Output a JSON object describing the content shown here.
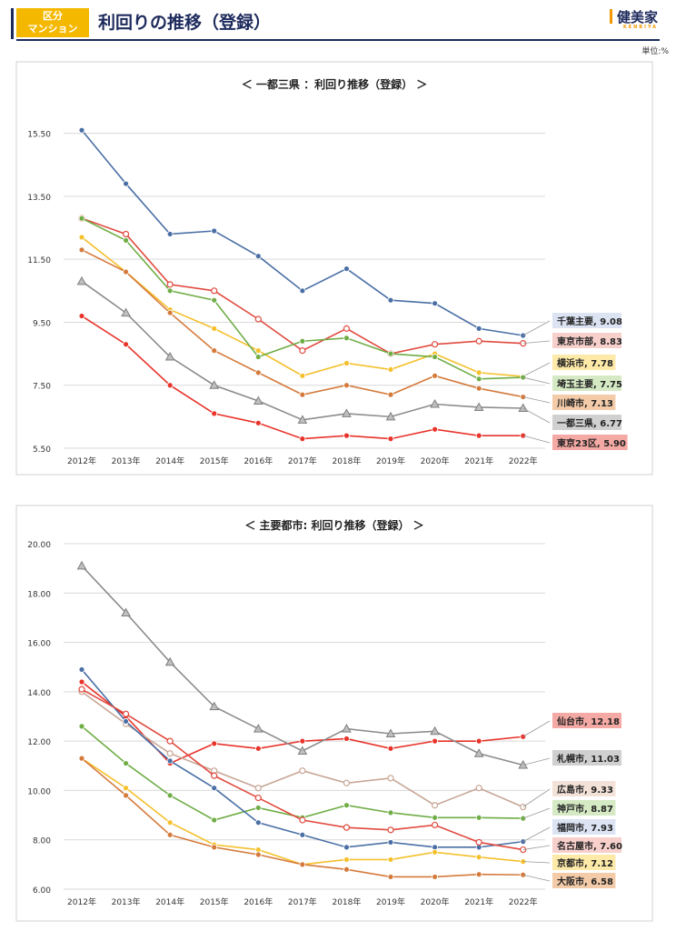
{
  "header": {
    "badge_line1": "区分",
    "badge_line2": "マンション",
    "title": "利回りの推移（登録）",
    "logo": "健美家",
    "logo_sub": "KENBIYA",
    "unit": "単位:%"
  },
  "chart_data": [
    {
      "type": "line",
      "title": "＜ 一都三県 ：利回り推移（登録） ＞",
      "categories": [
        "2012年",
        "2013年",
        "2014年",
        "2015年",
        "2016年",
        "2017年",
        "2018年",
        "2019年",
        "2020年",
        "2021年",
        "2022年"
      ],
      "ylim": [
        5.5,
        16.5
      ],
      "yticks": [
        "5.50",
        "7.50",
        "9.50",
        "11.50",
        "13.50",
        "15.50"
      ],
      "series": [
        {
          "name": "千葉主要",
          "label": "千葉主要, 9.08",
          "color": "#4a6fa5",
          "marker": "circle",
          "label_bg": "#dce3f3",
          "values": [
            15.6,
            13.9,
            12.3,
            12.4,
            11.6,
            10.5,
            11.2,
            10.2,
            10.1,
            9.3,
            9.08
          ]
        },
        {
          "name": "東京市部",
          "label": "東京市部, 8.83",
          "color": "#e04a3f",
          "marker": "circle-open",
          "label_bg": "#f7d0cc",
          "values": [
            12.8,
            12.3,
            10.7,
            10.5,
            9.6,
            8.6,
            9.3,
            8.5,
            8.8,
            8.9,
            8.83
          ]
        },
        {
          "name": "横浜市",
          "label": "横浜市, 7.78",
          "color": "#f5c02c",
          "marker": "circle",
          "label_bg": "#fde9a8",
          "values": [
            12.2,
            11.1,
            9.9,
            9.3,
            8.6,
            7.8,
            8.2,
            8.0,
            8.5,
            7.9,
            7.78
          ]
        },
        {
          "name": "埼玉主要",
          "label": "埼玉主要, 7.75",
          "color": "#70ad47",
          "marker": "circle",
          "label_bg": "#d5e9c4",
          "values": [
            12.8,
            12.1,
            10.5,
            10.2,
            8.4,
            8.9,
            9.0,
            8.5,
            8.4,
            7.7,
            7.75
          ]
        },
        {
          "name": "川崎市",
          "label": "川崎市, 7.13",
          "color": "#d47a3b",
          "marker": "circle",
          "label_bg": "#f3cba9",
          "values": [
            11.8,
            11.1,
            9.8,
            8.6,
            7.9,
            7.2,
            7.5,
            7.2,
            7.8,
            7.4,
            7.13
          ]
        },
        {
          "name": "一都三県",
          "label": "一都三県, 6.77",
          "color": "#8c8c8c",
          "marker": "triangle",
          "label_bg": "#d0d0d0",
          "values": [
            10.8,
            9.8,
            8.4,
            7.5,
            7.0,
            6.4,
            6.6,
            6.5,
            6.9,
            6.8,
            6.77
          ]
        },
        {
          "name": "東京23区",
          "label": "東京23区, 5.90",
          "color": "#e8332a",
          "marker": "circle",
          "label_bg": "#f5a9a4",
          "values": [
            9.7,
            8.8,
            7.5,
            6.6,
            6.3,
            5.8,
            5.9,
            5.8,
            6.1,
            5.9,
            5.9
          ]
        }
      ]
    },
    {
      "type": "line",
      "title": "＜ 主要都市: 利回り推移（登録） ＞",
      "categories": [
        "2012年",
        "2013年",
        "2014年",
        "2015年",
        "2016年",
        "2017年",
        "2018年",
        "2019年",
        "2020年",
        "2021年",
        "2022年"
      ],
      "ylim": [
        6.0,
        20.0
      ],
      "yticks": [
        "6.00",
        "8.00",
        "10.00",
        "12.00",
        "14.00",
        "16.00",
        "18.00",
        "20.00"
      ],
      "series": [
        {
          "name": "仙台市",
          "label": "仙台市, 12.18",
          "color": "#e8332a",
          "marker": "circle",
          "label_bg": "#f5a9a4",
          "values": [
            14.4,
            13.0,
            11.1,
            11.9,
            11.7,
            12.0,
            12.1,
            11.7,
            12.0,
            12.0,
            12.18
          ]
        },
        {
          "name": "札幌市",
          "label": "札幌市, 11.03",
          "color": "#8c8c8c",
          "marker": "triangle",
          "label_bg": "#d0d0d0",
          "values": [
            19.1,
            17.2,
            15.2,
            13.4,
            12.5,
            11.6,
            12.5,
            12.3,
            12.4,
            11.5,
            11.03
          ]
        },
        {
          "name": "広島市",
          "label": "広島市, 9.33",
          "color": "#c8a797",
          "marker": "circle-open",
          "label_bg": "#f3e2d8",
          "values": [
            14.0,
            12.7,
            11.5,
            10.8,
            10.1,
            10.8,
            10.3,
            10.5,
            9.4,
            10.1,
            9.33
          ]
        },
        {
          "name": "神戸市",
          "label": "神戸市, 8.87",
          "color": "#70ad47",
          "marker": "circle",
          "label_bg": "#d5e9c4",
          "values": [
            12.6,
            11.1,
            9.8,
            8.8,
            9.3,
            8.9,
            9.4,
            9.1,
            8.9,
            8.9,
            8.87
          ]
        },
        {
          "name": "福岡市",
          "label": "福岡市, 7.93",
          "color": "#4a6fa5",
          "marker": "circle",
          "label_bg": "#dce3f3",
          "values": [
            14.9,
            12.8,
            11.2,
            10.1,
            8.7,
            8.2,
            7.7,
            7.9,
            7.7,
            7.7,
            7.93
          ]
        },
        {
          "name": "名古屋市",
          "label": "名古屋市, 7.60",
          "color": "#e04a3f",
          "marker": "circle-open",
          "label_bg": "#f7d0cc",
          "values": [
            14.1,
            13.1,
            12.0,
            10.6,
            9.7,
            8.8,
            8.5,
            8.4,
            8.6,
            7.9,
            7.6
          ]
        },
        {
          "name": "京都市",
          "label": "京都市, 7.12",
          "color": "#f5c02c",
          "marker": "circle",
          "label_bg": "#fde9a8",
          "values": [
            11.3,
            10.1,
            8.7,
            7.8,
            7.6,
            7.0,
            7.2,
            7.2,
            7.5,
            7.3,
            7.12
          ]
        },
        {
          "name": "大阪市",
          "label": "大阪市, 6.58",
          "color": "#d47a3b",
          "marker": "circle",
          "label_bg": "#f3cba9",
          "values": [
            11.3,
            9.8,
            8.2,
            7.7,
            7.4,
            7.0,
            6.8,
            6.5,
            6.5,
            6.6,
            6.58
          ]
        }
      ]
    }
  ]
}
